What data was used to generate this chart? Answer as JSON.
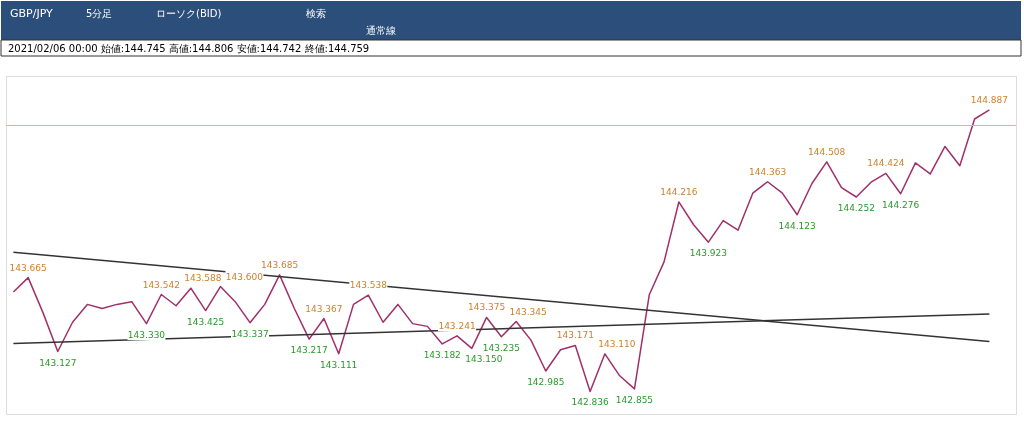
{
  "chart_data": {
    "type": "line",
    "title": "GBP/JPY",
    "annotations": [
      "5分足",
      "ローソク(BID)",
      "検索",
      "通常線",
      "2021/02/06 00:00 始値:144.745 高値:144.806 安値:144.742 終値:144.759"
    ],
    "categories": [
      null,
      null,
      null,
      null,
      null,
      null,
      null,
      null,
      null,
      null,
      null,
      null,
      null,
      null,
      null,
      null,
      null,
      null,
      null,
      null,
      null,
      null,
      null,
      null,
      null,
      null,
      null,
      null,
      null,
      null,
      null,
      null,
      null,
      null,
      null,
      null,
      null,
      null,
      null,
      null,
      null,
      null,
      null,
      null,
      null,
      null,
      null,
      null,
      null,
      null,
      null,
      null,
      null,
      null,
      null,
      null,
      null,
      null,
      null,
      null,
      null,
      null,
      null,
      null,
      null,
      null,
      null
    ],
    "marker": "none",
    "line_style": "solid",
    "series": [
      {
        "color": "#a0306a",
        "values": [
          143.56,
          143.665,
          143.41,
          143.127,
          143.34,
          143.47,
          143.44,
          143.47,
          143.49,
          143.33,
          143.542,
          143.46,
          143.588,
          143.425,
          143.6,
          143.49,
          143.337,
          143.47,
          143.685,
          143.44,
          143.217,
          143.367,
          143.111,
          143.47,
          143.538,
          143.34,
          143.47,
          143.33,
          143.31,
          143.182,
          143.241,
          143.15,
          143.375,
          143.235,
          143.345,
          143.21,
          142.985,
          143.14,
          143.171,
          142.836,
          143.11,
          142.95,
          142.855,
          143.54,
          143.78,
          144.216,
          144.05,
          143.923,
          144.08,
          144.01,
          144.28,
          144.363,
          144.28,
          144.123,
          144.35,
          144.508,
          144.32,
          144.252,
          144.36,
          144.424,
          144.276,
          144.5,
          144.42,
          144.62,
          144.48,
          144.82,
          144.887
        ],
        "value_labels": [
          null,
          "143.665",
          null,
          "143.127",
          null,
          null,
          null,
          null,
          null,
          "143.330",
          "143.542",
          null,
          "143.588",
          "143.425",
          "143.600",
          null,
          "143.337",
          null,
          "143.685",
          null,
          "143.217",
          "143.367",
          "143.111",
          null,
          "143.538",
          null,
          null,
          null,
          null,
          "143.182",
          "143.241",
          "143.150",
          "143.375",
          "143.235",
          "143.345",
          null,
          "142.985",
          null,
          "143.171",
          "142.836",
          "143.110",
          null,
          "142.855",
          null,
          null,
          "144.216",
          null,
          "143.923",
          null,
          null,
          null,
          "144.363",
          null,
          "144.123",
          null,
          "144.508",
          null,
          "144.252",
          null,
          "144.424",
          "144.276",
          null,
          null,
          null,
          null,
          null,
          "144.887"
        ]
      },
      {
        "type": "line",
        "color": "#333333",
        "values": [
          143.85,
          null,
          null,
          null,
          null,
          null,
          null,
          null,
          null,
          null,
          null,
          null,
          null,
          null,
          null,
          null,
          null,
          null,
          null,
          null,
          null,
          null,
          null,
          null,
          null,
          null,
          null,
          null,
          null,
          null,
          null,
          null,
          null,
          null,
          null,
          null,
          null,
          null,
          null,
          null,
          null,
          null,
          null,
          null,
          null,
          null,
          null,
          null,
          null,
          null,
          null,
          null,
          null,
          null,
          null,
          null,
          null,
          null,
          null,
          null,
          null,
          null,
          null,
          null,
          null,
          null,
          143.2
        ]
      },
      {
        "type": "line",
        "color": "#333333",
        "values": [
          143.186,
          null,
          null,
          null,
          null,
          null,
          null,
          null,
          null,
          null,
          null,
          null,
          null,
          null,
          null,
          null,
          null,
          null,
          null,
          null,
          null,
          null,
          null,
          null,
          null,
          null,
          null,
          null,
          null,
          null,
          null,
          null,
          null,
          null,
          null,
          null,
          null,
          null,
          null,
          null,
          null,
          null,
          null,
          null,
          null,
          null,
          null,
          null,
          null,
          null,
          null,
          null,
          null,
          null,
          null,
          null,
          null,
          null,
          null,
          null,
          null,
          null,
          null,
          null,
          null,
          null,
          143.4
        ]
      }
    ],
    "ref_lines": [
      {
        "axis": "y",
        "value": 144.773,
        "color": "#d8c060"
      }
    ]
  }
}
